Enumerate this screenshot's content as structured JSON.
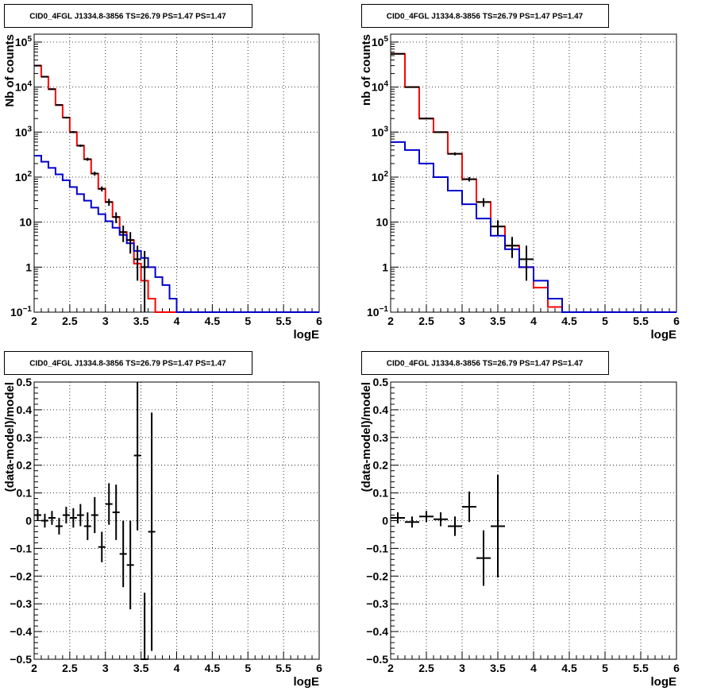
{
  "colors": {
    "model": "#ff0000",
    "background_model": "#0000cc",
    "data": "#000000",
    "grid": "#000000"
  },
  "chart_data": [
    {
      "id": "counts-left",
      "type": "line",
      "title": "CID0_4FGL J1334.8-3856 TS=26.79 PS=1.47 PS=1.47",
      "xlabel": "logE",
      "ylabel": "Nb of counts",
      "y_scale": "log",
      "xlim": [
        2,
        6
      ],
      "ylim": [
        0.1,
        150000
      ],
      "grid": true,
      "x_ticks": [
        "2",
        "2.5",
        "3",
        "3.5",
        "4",
        "4.5",
        "5",
        "5.5",
        "6"
      ],
      "y_ticks": [
        {
          "value": 0.1,
          "base": "10",
          "exp": "−1"
        },
        {
          "value": 1,
          "label": "1"
        },
        {
          "value": 10,
          "label": "10"
        },
        {
          "value": 100,
          "base": "10",
          "exp": "2"
        },
        {
          "value": 1000,
          "base": "10",
          "exp": "3"
        },
        {
          "value": 10000,
          "base": "10",
          "exp": "4"
        },
        {
          "value": 100000,
          "base": "10",
          "exp": "5"
        }
      ],
      "bin_edges": [
        2.0,
        2.1,
        2.2,
        2.3,
        2.4,
        2.5,
        2.6,
        2.7,
        2.8,
        2.9,
        3.0,
        3.1,
        3.2,
        3.3,
        3.4,
        3.5,
        3.6,
        3.7,
        3.8,
        3.9,
        4.0,
        4.1,
        4.2,
        4.3,
        4.4,
        4.5,
        4.6,
        4.7,
        4.8,
        4.9,
        5.0,
        5.1,
        5.2,
        5.3,
        5.4,
        5.5,
        5.6,
        5.7,
        5.8,
        5.9,
        6.0
      ],
      "series": [
        {
          "role": "model",
          "values": [
            30000,
            17000,
            9000,
            4000,
            2100,
            1000,
            500,
            250,
            120,
            55,
            28,
            13,
            6,
            4,
            1.2,
            0.5,
            0.2,
            0.1,
            0.1,
            0.1,
            0.1,
            0.1,
            0.1,
            0.1,
            0.1,
            0.1,
            0.1,
            0.1,
            0.1,
            0.1,
            0.1,
            0.1,
            0.1,
            0.1,
            0.1,
            0.1,
            0.1,
            0.1,
            0.1,
            0.1
          ]
        },
        {
          "role": "background",
          "values": [
            300,
            220,
            160,
            115,
            85,
            60,
            42,
            30,
            21,
            15,
            10.5,
            7.5,
            5.2,
            3.4,
            2.3,
            1.6,
            1.0,
            0.6,
            0.4,
            0.2,
            0.1,
            0.1,
            0.1,
            0.1,
            0.1,
            0.1,
            0.1,
            0.1,
            0.1,
            0.1,
            0.1,
            0.1,
            0.1,
            0.1,
            0.1,
            0.1,
            0.1,
            0.1,
            0.1,
            0.1
          ]
        },
        {
          "role": "data",
          "points": [
            {
              "x": 2.05,
              "y": 30000,
              "lo": 29000,
              "hi": 31000
            },
            {
              "x": 2.15,
              "y": 17000,
              "lo": 16500,
              "hi": 17500
            },
            {
              "x": 2.25,
              "y": 9000,
              "lo": 8700,
              "hi": 9300
            },
            {
              "x": 2.35,
              "y": 4000,
              "lo": 3850,
              "hi": 4150
            },
            {
              "x": 2.45,
              "y": 2100,
              "lo": 2000,
              "hi": 2200
            },
            {
              "x": 2.55,
              "y": 1000,
              "lo": 950,
              "hi": 1050
            },
            {
              "x": 2.65,
              "y": 500,
              "lo": 470,
              "hi": 530
            },
            {
              "x": 2.75,
              "y": 250,
              "lo": 230,
              "hi": 270
            },
            {
              "x": 2.85,
              "y": 120,
              "lo": 108,
              "hi": 132
            },
            {
              "x": 2.95,
              "y": 55,
              "lo": 48,
              "hi": 62
            },
            {
              "x": 3.05,
              "y": 28,
              "lo": 23,
              "hi": 33
            },
            {
              "x": 3.15,
              "y": 13,
              "lo": 9.5,
              "hi": 16.5
            },
            {
              "x": 3.25,
              "y": 6,
              "lo": 3.6,
              "hi": 8.4
            },
            {
              "x": 3.35,
              "y": 4,
              "lo": 2.0,
              "hi": 6.0
            },
            {
              "x": 3.45,
              "y": 1.5,
              "lo": 0.5,
              "hi": 3.0
            },
            {
              "x": 3.55,
              "y": 1,
              "lo": 0.1,
              "hi": 2.3
            }
          ]
        }
      ]
    },
    {
      "id": "counts-right",
      "type": "line",
      "title": "CID0_4FGL J1334.8-3856 TS=26.79 PS=1.47 PS=1.47",
      "xlabel": "logE",
      "ylabel": "nb of counts",
      "y_scale": "log",
      "xlim": [
        2,
        6
      ],
      "ylim": [
        0.1,
        150000
      ],
      "grid": true,
      "x_ticks": [
        "2",
        "2.5",
        "3",
        "3.5",
        "4",
        "4.5",
        "5",
        "5.5",
        "6"
      ],
      "y_ticks": [
        {
          "value": 0.1,
          "base": "10",
          "exp": "−1"
        },
        {
          "value": 1,
          "label": "1"
        },
        {
          "value": 10,
          "label": "10"
        },
        {
          "value": 100,
          "base": "10",
          "exp": "2"
        },
        {
          "value": 1000,
          "base": "10",
          "exp": "3"
        },
        {
          "value": 10000,
          "base": "10",
          "exp": "4"
        },
        {
          "value": 100000,
          "base": "10",
          "exp": "5"
        }
      ],
      "bin_edges": [
        2.0,
        2.2,
        2.4,
        2.6,
        2.8,
        3.0,
        3.2,
        3.4,
        3.6,
        3.8,
        4.0,
        4.2,
        4.4,
        4.6,
        4.8,
        5.0,
        5.2,
        5.4,
        5.6,
        5.8,
        6.0
      ],
      "series": [
        {
          "role": "model",
          "values": [
            55000,
            10000,
            2000,
            1000,
            330,
            90,
            28,
            8,
            3,
            1.0,
            0.35,
            0.13,
            0.1,
            0.1,
            0.1,
            0.1,
            0.1,
            0.1,
            0.1,
            0.1
          ]
        },
        {
          "role": "background",
          "values": [
            600,
            400,
            200,
            100,
            50,
            25,
            12,
            5,
            2.5,
            1.0,
            0.5,
            0.2,
            0.1,
            0.1,
            0.1,
            0.1,
            0.1,
            0.1,
            0.1,
            0.1
          ]
        },
        {
          "role": "data",
          "points": [
            {
              "x": 2.1,
              "y": 55000,
              "lo": 54000,
              "hi": 56000
            },
            {
              "x": 2.3,
              "y": 10000,
              "lo": 9800,
              "hi": 10200
            },
            {
              "x": 2.5,
              "y": 2000,
              "lo": 1940,
              "hi": 2060
            },
            {
              "x": 2.7,
              "y": 1000,
              "lo": 960,
              "hi": 1040
            },
            {
              "x": 2.9,
              "y": 330,
              "lo": 305,
              "hi": 355
            },
            {
              "x": 3.1,
              "y": 90,
              "lo": 80,
              "hi": 100
            },
            {
              "x": 3.3,
              "y": 28,
              "lo": 22,
              "hi": 34
            },
            {
              "x": 3.5,
              "y": 8,
              "lo": 5,
              "hi": 11
            },
            {
              "x": 3.7,
              "y": 3,
              "lo": 1.6,
              "hi": 4.7
            },
            {
              "x": 3.9,
              "y": 1.5,
              "lo": 0.5,
              "hi": 3
            }
          ]
        }
      ]
    },
    {
      "id": "residuals-left",
      "type": "scatter",
      "title": "CID0_4FGL J1334.8-3856 TS=26.79 PS=1.47 PS=1.47",
      "xlabel": "logE",
      "ylabel": "(data-model)/model",
      "y_scale": "linear",
      "xlim": [
        2,
        6
      ],
      "ylim": [
        -0.5,
        0.5
      ],
      "grid": true,
      "x_ticks": [
        "2",
        "2.5",
        "3",
        "3.5",
        "4",
        "4.5",
        "5",
        "5.5",
        "6"
      ],
      "y_ticks": [
        {
          "value": -0.5,
          "label": "−0.5"
        },
        {
          "value": -0.4,
          "label": "−0.4"
        },
        {
          "value": -0.3,
          "label": "−0.3"
        },
        {
          "value": -0.2,
          "label": "−0.2"
        },
        {
          "value": -0.1,
          "label": "−0.1"
        },
        {
          "value": 0,
          "label": "0"
        },
        {
          "value": 0.1,
          "label": "0.1"
        },
        {
          "value": 0.2,
          "label": "0.2"
        },
        {
          "value": 0.3,
          "label": "0.3"
        },
        {
          "value": 0.4,
          "label": "0.4"
        },
        {
          "value": 0.5,
          "label": "0.5"
        }
      ],
      "points": [
        {
          "x": 2.05,
          "y": 0.02,
          "err": 0.02
        },
        {
          "x": 2.15,
          "y": 0.0,
          "err": 0.025
        },
        {
          "x": 2.25,
          "y": 0.01,
          "err": 0.025
        },
        {
          "x": 2.35,
          "y": -0.02,
          "err": 0.03
        },
        {
          "x": 2.45,
          "y": 0.02,
          "err": 0.03
        },
        {
          "x": 2.55,
          "y": 0.01,
          "err": 0.035
        },
        {
          "x": 2.65,
          "y": 0.02,
          "err": 0.04
        },
        {
          "x": 2.75,
          "y": -0.02,
          "err": 0.05
        },
        {
          "x": 2.85,
          "y": 0.02,
          "err": 0.065
        },
        {
          "x": 2.95,
          "y": -0.095,
          "err": 0.055
        },
        {
          "x": 3.05,
          "y": 0.06,
          "err": 0.075
        },
        {
          "x": 3.15,
          "y": 0.03,
          "err": 0.1
        },
        {
          "x": 3.25,
          "y": -0.12,
          "err": 0.12
        },
        {
          "x": 3.35,
          "y": -0.16,
          "err": 0.16
        },
        {
          "x": 3.45,
          "y": 0.235,
          "err": 0.27
        },
        {
          "x": 3.55,
          "y": -0.5,
          "err": 0.24
        },
        {
          "x": 3.65,
          "y": -0.04,
          "err": 0.43
        }
      ]
    },
    {
      "id": "residuals-right",
      "type": "scatter",
      "title": "CID0_4FGL J1334.8-3856 TS=26.79 PS=1.47 PS=1.47",
      "xlabel": "logE",
      "ylabel": "(data-model)/model",
      "y_scale": "linear",
      "xlim": [
        2,
        6
      ],
      "ylim": [
        -0.5,
        0.5
      ],
      "grid": true,
      "x_ticks": [
        "2",
        "2.5",
        "3",
        "3.5",
        "4",
        "4.5",
        "5",
        "5.5",
        "6"
      ],
      "y_ticks": [
        {
          "value": -0.5,
          "label": "−0.5"
        },
        {
          "value": -0.4,
          "label": "−0.4"
        },
        {
          "value": -0.3,
          "label": "−0.3"
        },
        {
          "value": -0.2,
          "label": "−0.2"
        },
        {
          "value": -0.1,
          "label": "−0.1"
        },
        {
          "value": 0,
          "label": "0"
        },
        {
          "value": 0.1,
          "label": "0.1"
        },
        {
          "value": 0.2,
          "label": "0.2"
        },
        {
          "value": 0.3,
          "label": "0.3"
        },
        {
          "value": 0.4,
          "label": "0.4"
        },
        {
          "value": 0.5,
          "label": "0.5"
        }
      ],
      "points": [
        {
          "x": 2.1,
          "y": 0.01,
          "err": 0.02
        },
        {
          "x": 2.3,
          "y": -0.005,
          "err": 0.02
        },
        {
          "x": 2.5,
          "y": 0.015,
          "err": 0.02
        },
        {
          "x": 2.7,
          "y": 0.005,
          "err": 0.025
        },
        {
          "x": 2.9,
          "y": -0.02,
          "err": 0.035
        },
        {
          "x": 3.1,
          "y": 0.05,
          "err": 0.055
        },
        {
          "x": 3.3,
          "y": -0.135,
          "err": 0.1
        },
        {
          "x": 3.5,
          "y": -0.02,
          "err": 0.185
        }
      ]
    }
  ]
}
